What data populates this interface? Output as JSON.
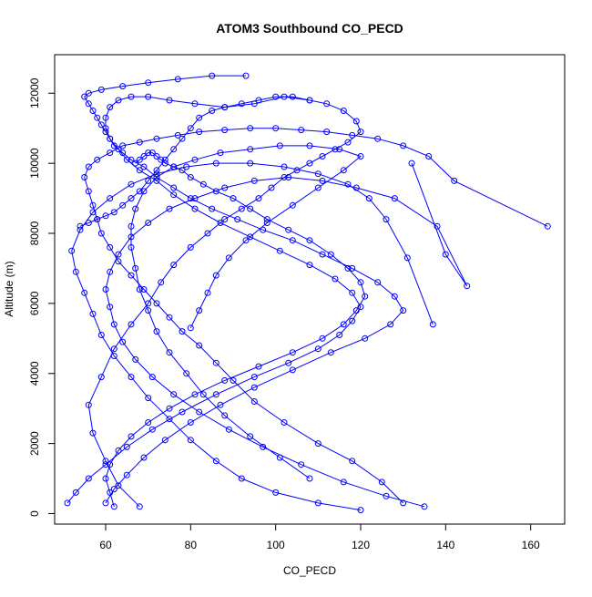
{
  "chart_data": {
    "type": "scatter",
    "title": "ATOM3 Southbound CO_PECD",
    "xlabel": "CO_PECD",
    "ylabel": "Altitude (m)",
    "xlim": [
      48,
      168
    ],
    "ylim": [
      -300,
      13100
    ],
    "xticks": [
      60,
      80,
      100,
      120,
      140,
      160
    ],
    "yticks": [
      0,
      2000,
      4000,
      6000,
      8000,
      10000,
      12000
    ],
    "grid": false,
    "legend": "none",
    "series_color": "#0000ff",
    "marker": "open-circle-connected-line",
    "series": [
      {
        "x": [
          68,
          63,
          60,
          57,
          56,
          59,
          62,
          66,
          70,
          73,
          76,
          80,
          84,
          88,
          92,
          96,
          99,
          102,
          105,
          108,
          111,
          114,
          117,
          120,
          119,
          116,
          112,
          108,
          104,
          100,
          96,
          92,
          88,
          85,
          82,
          80,
          78,
          76,
          74,
          72,
          70,
          68,
          66,
          64,
          62,
          60,
          58,
          56,
          54
        ],
        "y": [
          200,
          800,
          1500,
          2300,
          3100,
          3900,
          4700,
          5400,
          6000,
          6600,
          7100,
          7600,
          8000,
          8400,
          8700,
          9000,
          9300,
          9600,
          9800,
          10000,
          10200,
          10400,
          10600,
          10900,
          11200,
          11500,
          11700,
          11800,
          11900,
          11900,
          11800,
          11700,
          11600,
          11500,
          11300,
          11000,
          10700,
          10400,
          10100,
          9800,
          9500,
          9200,
          9000,
          8800,
          8600,
          8500,
          8400,
          8300,
          8200
        ]
      },
      {
        "x": [
          130,
          125,
          118,
          110,
          102,
          95,
          90,
          86,
          82,
          78,
          75,
          72,
          69,
          66,
          63,
          61,
          59,
          58,
          57,
          56,
          55,
          56,
          58,
          61,
          64,
          68,
          72,
          77,
          82,
          88,
          94,
          100,
          106,
          112,
          118,
          124,
          130,
          136,
          142,
          164
        ],
        "y": [
          300,
          900,
          1500,
          2000,
          2600,
          3200,
          3800,
          4300,
          4800,
          5200,
          5600,
          6000,
          6400,
          6800,
          7200,
          7600,
          8000,
          8400,
          8800,
          9200,
          9600,
          9900,
          10100,
          10300,
          10500,
          10600,
          10700,
          10800,
          10900,
          10950,
          11000,
          11000,
          10950,
          10900,
          10800,
          10700,
          10500,
          10200,
          9500,
          8200
        ]
      },
      {
        "x": [
          120,
          110,
          100,
          92,
          86,
          80,
          75,
          70,
          66,
          62,
          59,
          57,
          55,
          53,
          52,
          54,
          57,
          61,
          66,
          72,
          79,
          86,
          94,
          102,
          110,
          117,
          122,
          126,
          131,
          137
        ],
        "y": [
          100,
          300,
          600,
          1000,
          1500,
          2100,
          2700,
          3300,
          3900,
          4500,
          5100,
          5700,
          6300,
          6900,
          7500,
          8100,
          8600,
          9000,
          9400,
          9700,
          9900,
          10000,
          10000,
          9900,
          9700,
          9400,
          9000,
          8400,
          7300,
          5400
        ]
      },
      {
        "x": [
          60,
          62,
          65,
          69,
          74,
          80,
          87,
          95,
          104,
          113,
          121,
          127,
          130,
          128,
          124,
          118,
          111,
          104,
          97,
          91,
          85,
          80,
          76,
          72,
          69,
          66,
          64,
          62,
          61,
          60,
          59,
          58,
          57,
          56,
          55,
          56,
          59,
          64,
          70,
          77,
          85,
          93
        ],
        "y": [
          300,
          700,
          1100,
          1600,
          2100,
          2600,
          3100,
          3600,
          4100,
          4600,
          5000,
          5400,
          5800,
          6200,
          6600,
          7000,
          7400,
          7800,
          8100,
          8400,
          8700,
          9000,
          9300,
          9600,
          9900,
          10100,
          10300,
          10500,
          10700,
          10900,
          11100,
          11300,
          11500,
          11700,
          11900,
          12000,
          12100,
          12200,
          12300,
          12400,
          12500,
          12500
        ]
      },
      {
        "x": [
          135,
          126,
          116,
          106,
          97,
          89,
          82,
          76,
          71,
          67,
          64,
          62,
          61,
          60,
          61,
          63,
          66,
          70,
          75,
          81,
          88,
          95,
          103,
          111,
          119,
          128,
          138,
          145,
          140,
          132
        ],
        "y": [
          200,
          500,
          900,
          1400,
          1900,
          2400,
          2900,
          3400,
          3900,
          4400,
          4900,
          5400,
          5900,
          6400,
          6900,
          7400,
          7900,
          8300,
          8700,
          9000,
          9300,
          9500,
          9600,
          9500,
          9300,
          9000,
          8200,
          6500,
          7400,
          10000
        ]
      },
      {
        "x": [
          108,
          101,
          94,
          88,
          83,
          79,
          75,
          72,
          70,
          68,
          67,
          66,
          66,
          67,
          69,
          72,
          76,
          81,
          87,
          94,
          101,
          108,
          115,
          120,
          116,
          110,
          104,
          98,
          93,
          89,
          86,
          84,
          82,
          80
        ],
        "y": [
          1000,
          1600,
          2200,
          2800,
          3400,
          4000,
          4600,
          5200,
          5800,
          6400,
          7000,
          7600,
          8200,
          8700,
          9200,
          9600,
          9900,
          10100,
          10300,
          10400,
          10500,
          10500,
          10400,
          10200,
          9800,
          9300,
          8800,
          8300,
          7800,
          7300,
          6800,
          6300,
          5800,
          5300
        ]
      },
      {
        "x": [
          51,
          53,
          56,
          60,
          65,
          71,
          78,
          86,
          95,
          103,
          110,
          115,
          118,
          120,
          118,
          114,
          108,
          101,
          94,
          87,
          81,
          76,
          72,
          68,
          65,
          63,
          61,
          60,
          60,
          61,
          63,
          66,
          70,
          75,
          81,
          88,
          95,
          102,
          108
        ],
        "y": [
          300,
          600,
          1000,
          1400,
          1900,
          2400,
          2900,
          3400,
          3900,
          4300,
          4700,
          5100,
          5500,
          5900,
          6300,
          6700,
          7100,
          7500,
          7900,
          8300,
          8700,
          9100,
          9500,
          9800,
          10100,
          10400,
          10700,
          11000,
          11300,
          11600,
          11800,
          11900,
          11900,
          11800,
          11700,
          11600,
          11700,
          11900,
          11800
        ]
      },
      {
        "x": [
          62,
          61,
          60,
          61,
          63,
          66,
          70,
          75,
          81,
          88,
          96,
          104,
          111,
          116,
          119,
          121,
          120,
          117,
          113,
          108,
          103,
          98,
          94,
          90,
          86,
          83,
          80,
          78,
          76,
          74,
          73,
          72,
          71,
          70,
          69,
          68,
          67
        ],
        "y": [
          200,
          600,
          1000,
          1400,
          1800,
          2200,
          2600,
          3000,
          3400,
          3800,
          4200,
          4600,
          5000,
          5400,
          5800,
          6200,
          6600,
          7000,
          7400,
          7800,
          8100,
          8400,
          8700,
          9000,
          9200,
          9400,
          9600,
          9800,
          9900,
          10000,
          10100,
          10200,
          10300,
          10300,
          10200,
          10100,
          10000
        ]
      }
    ]
  }
}
